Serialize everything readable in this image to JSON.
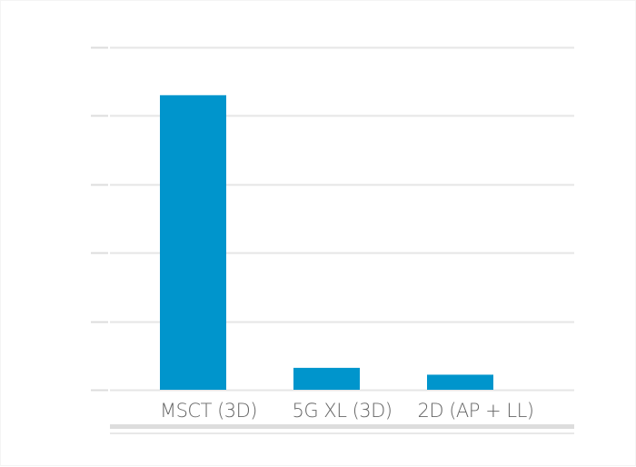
{
  "chart_data": {
    "type": "bar",
    "title": "",
    "xlabel": "",
    "ylabel": "",
    "categories": [
      "MSCT (3D)",
      "5G XL (3D)",
      "2D (AP + LL)"
    ],
    "series": [
      {
        "values": [
          4.3,
          0.32,
          0.22
        ]
      }
    ],
    "ylim": [
      0,
      5
    ],
    "y_gridlines": [
      0,
      1,
      2,
      3,
      4,
      5
    ],
    "y_tick_labels_visible": false,
    "grid": true,
    "legend": "none",
    "bar_color": "#0095cc",
    "grid_color": "#e6e6e6"
  }
}
